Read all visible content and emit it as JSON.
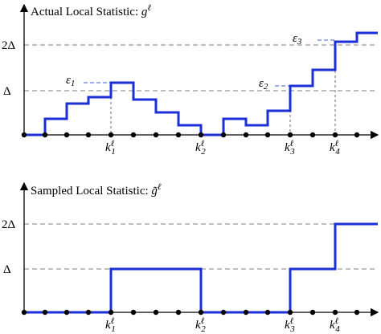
{
  "panels": [
    {
      "title": "Actual Local Statistic:",
      "symbol": "g",
      "symbol_sup": "ℓ",
      "y_labels": [
        "2Δ",
        "Δ"
      ],
      "k_labels": [
        {
          "base": "k",
          "sup": "ℓ",
          "sub": "1"
        },
        {
          "base": "k",
          "sup": "ℓ",
          "sub": "2"
        },
        {
          "base": "k",
          "sup": "ℓ",
          "sub": "3"
        },
        {
          "base": "k",
          "sup": "ℓ",
          "sub": "4"
        }
      ],
      "epsilons": [
        {
          "base": "ε",
          "sub": "1"
        },
        {
          "base": "ε",
          "sub": "2"
        },
        {
          "base": "ε",
          "sub": "3"
        }
      ]
    },
    {
      "title": "Sampled Local Statistic:",
      "symbol": "g̃",
      "symbol_sup": "ℓ",
      "y_labels": [
        "2Δ",
        "Δ"
      ],
      "k_labels": [
        {
          "base": "k",
          "sup": "ℓ",
          "sub": "1"
        },
        {
          "base": "k",
          "sup": "ℓ",
          "sub": "2"
        },
        {
          "base": "k",
          "sup": "ℓ",
          "sub": "3"
        },
        {
          "base": "k",
          "sup": "ℓ",
          "sub": "4"
        }
      ]
    }
  ]
}
